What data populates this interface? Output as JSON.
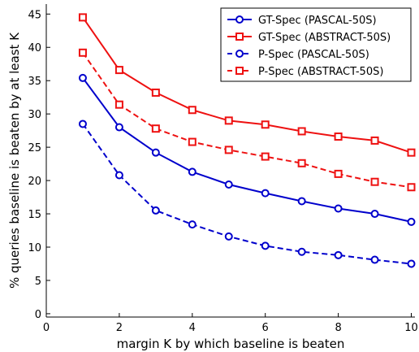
{
  "chart_data": {
    "type": "line",
    "title": "",
    "xlabel": "margin K by which baseline is beaten",
    "ylabel": "% queries baseline is beaten by at least K",
    "xlim": [
      0,
      10.1
    ],
    "ylim": [
      -0.5,
      46.5
    ],
    "xticks": [
      0,
      2,
      4,
      6,
      8,
      10
    ],
    "yticks": [
      0,
      5,
      10,
      15,
      20,
      25,
      30,
      35,
      40,
      45
    ],
    "grid": false,
    "legend_position": "top-right",
    "x": [
      1,
      2,
      3,
      4,
      5,
      6,
      7,
      8,
      9,
      10
    ],
    "series": [
      {
        "name": "GT-Spec (PASCAL-50S)",
        "color": "#0000cc",
        "marker": "circle",
        "line_style": "solid",
        "values": [
          35.4,
          28.0,
          24.2,
          21.3,
          19.4,
          18.1,
          16.9,
          15.8,
          15.0,
          13.8
        ]
      },
      {
        "name": "GT-Spec (ABSTRACT-50S)",
        "color": "#ee1111",
        "marker": "square",
        "line_style": "solid",
        "values": [
          44.5,
          36.6,
          33.2,
          30.6,
          29.0,
          28.4,
          27.4,
          26.6,
          26.0,
          24.2
        ]
      },
      {
        "name": "P-Spec (PASCAL-50S)",
        "color": "#0000cc",
        "marker": "circle",
        "line_style": "dashed",
        "values": [
          28.5,
          20.8,
          15.5,
          13.4,
          11.6,
          10.2,
          9.3,
          8.8,
          8.1,
          7.5
        ]
      },
      {
        "name": "P-Spec (ABSTRACT-50S)",
        "color": "#ee1111",
        "marker": "square",
        "line_style": "dashed",
        "values": [
          39.2,
          31.4,
          27.8,
          25.8,
          24.6,
          23.6,
          22.6,
          21.0,
          19.8,
          19.0
        ]
      }
    ]
  }
}
